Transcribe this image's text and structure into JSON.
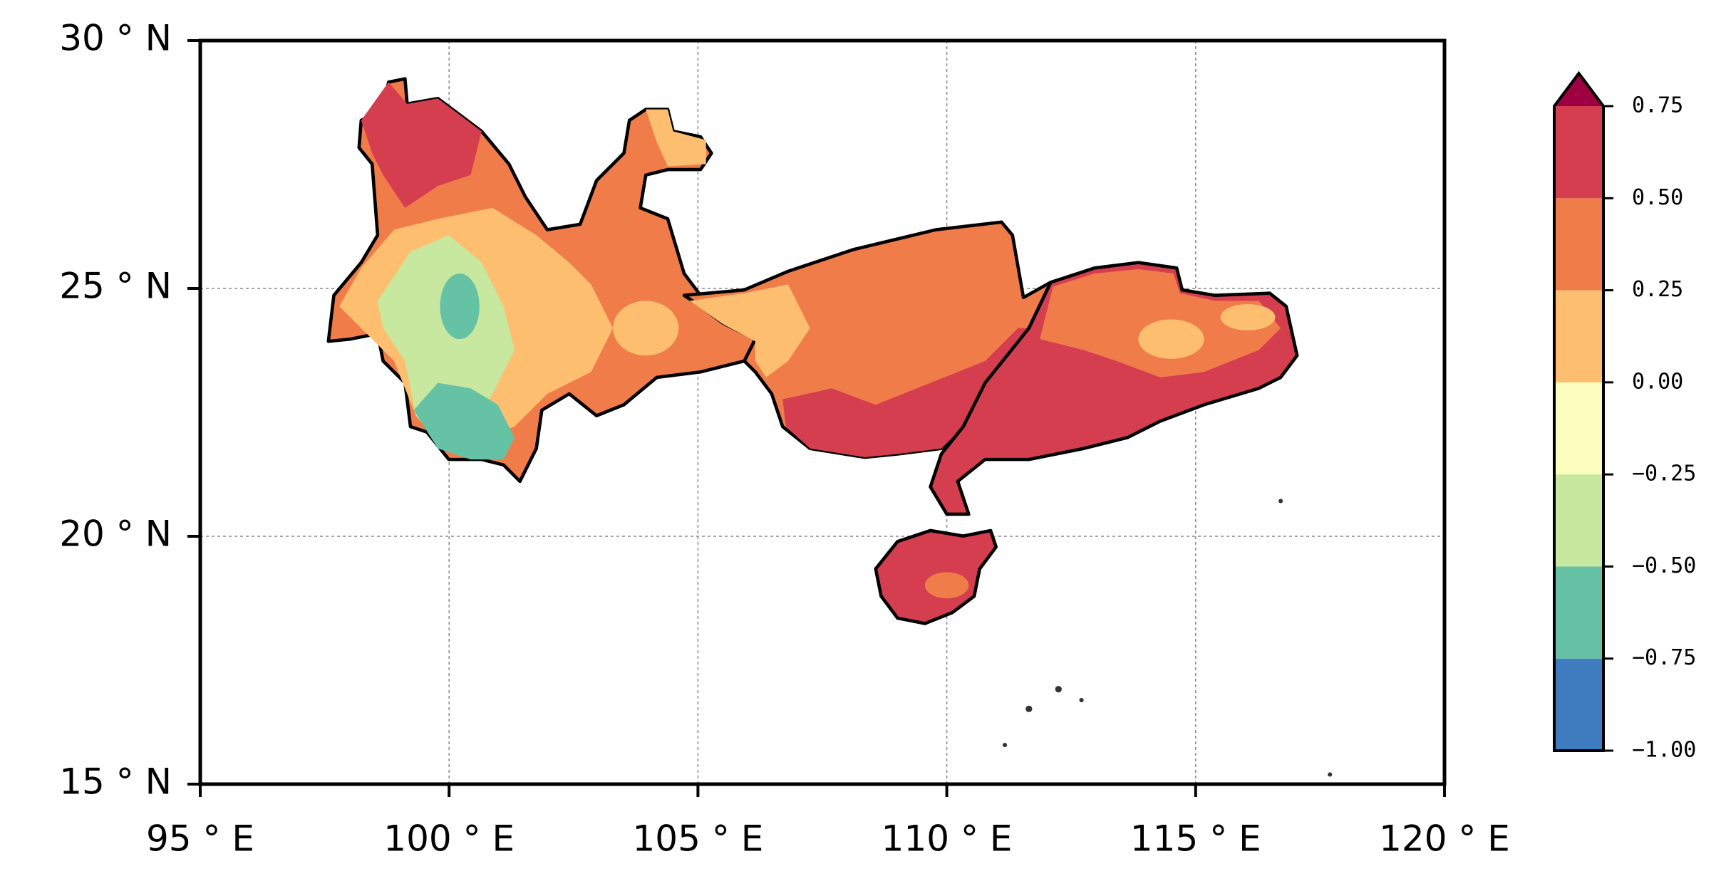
{
  "chart_data": {
    "type": "map",
    "xlim": [
      95,
      120
    ],
    "ylim": [
      15,
      30
    ],
    "xticks": [
      {
        "value": 95,
        "label": "95 ° E"
      },
      {
        "value": 100,
        "label": "100 ° E"
      },
      {
        "value": 105,
        "label": "105 ° E"
      },
      {
        "value": 110,
        "label": "110 ° E"
      },
      {
        "value": 115,
        "label": "115 ° E"
      },
      {
        "value": 120,
        "label": "120 ° E"
      }
    ],
    "yticks": [
      {
        "value": 15,
        "label": "15 ° N"
      },
      {
        "value": 20,
        "label": "20 ° N"
      },
      {
        "value": 25,
        "label": "25 ° N"
      },
      {
        "value": 30,
        "label": "30 ° N"
      }
    ],
    "grid": true,
    "colorbar": {
      "ticks": [
        {
          "value": -1,
          "label": "−1.00"
        },
        {
          "value": -0.75,
          "label": "−0.75"
        },
        {
          "value": -0.5,
          "label": "−0.50"
        },
        {
          "value": -0.25,
          "label": "−0.25"
        },
        {
          "value": 0,
          "label": "0.00"
        },
        {
          "value": 0.25,
          "label": "0.25"
        },
        {
          "value": 0.5,
          "label": "0.50"
        },
        {
          "value": 0.75,
          "label": "0.75"
        }
      ],
      "colors": [
        "#3e7cbf",
        "#66c2a5",
        "#c7e89e",
        "#fdfebd",
        "#fdbf6f",
        "#f07c4a",
        "#d53e4f"
      ],
      "extend_color": "#9e0142"
    }
  }
}
